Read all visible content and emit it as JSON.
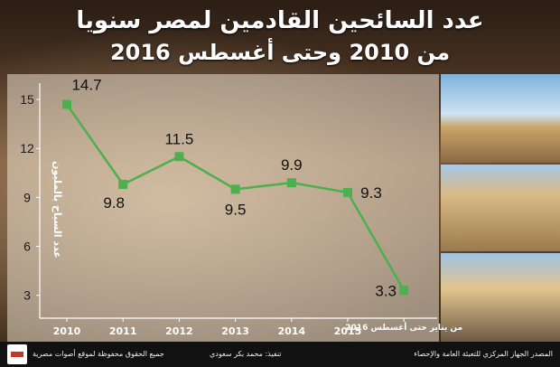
{
  "title": {
    "line1": "عدد السائحين القادمين لمصر سنويا",
    "line2": "من 2010 وحتى أغسطس 2016"
  },
  "chart_data": {
    "type": "line",
    "title": "عدد السائحين القادمين لمصر سنويا من 2010 وحتى أغسطس 2016",
    "ylabel": "عدد السياح بالمليون",
    "categories": [
      "2010",
      "2011",
      "2012",
      "2013",
      "2014",
      "2015",
      "من يناير حتى أغسطس 2016"
    ],
    "values": [
      14.7,
      9.8,
      11.5,
      9.5,
      9.9,
      9.3,
      3.3
    ],
    "value_labels": [
      "14.7",
      "9.8",
      "11.5",
      "9.5",
      "9.9",
      "9.3",
      "3.3"
    ],
    "yticks": [
      "3",
      "6",
      "9",
      "12",
      "15"
    ],
    "ylim": [
      1.6,
      16.0
    ],
    "grid": false,
    "line_color": "#4caf50"
  },
  "footer": {
    "source": "المصدر الجهاز المركزي للتعبئة العامة والإحصاء",
    "design": "تنفيذ: محمد بكر سعودي",
    "rights": "جميع الحقوق محفوظة لموقع أصوات مصرية"
  }
}
